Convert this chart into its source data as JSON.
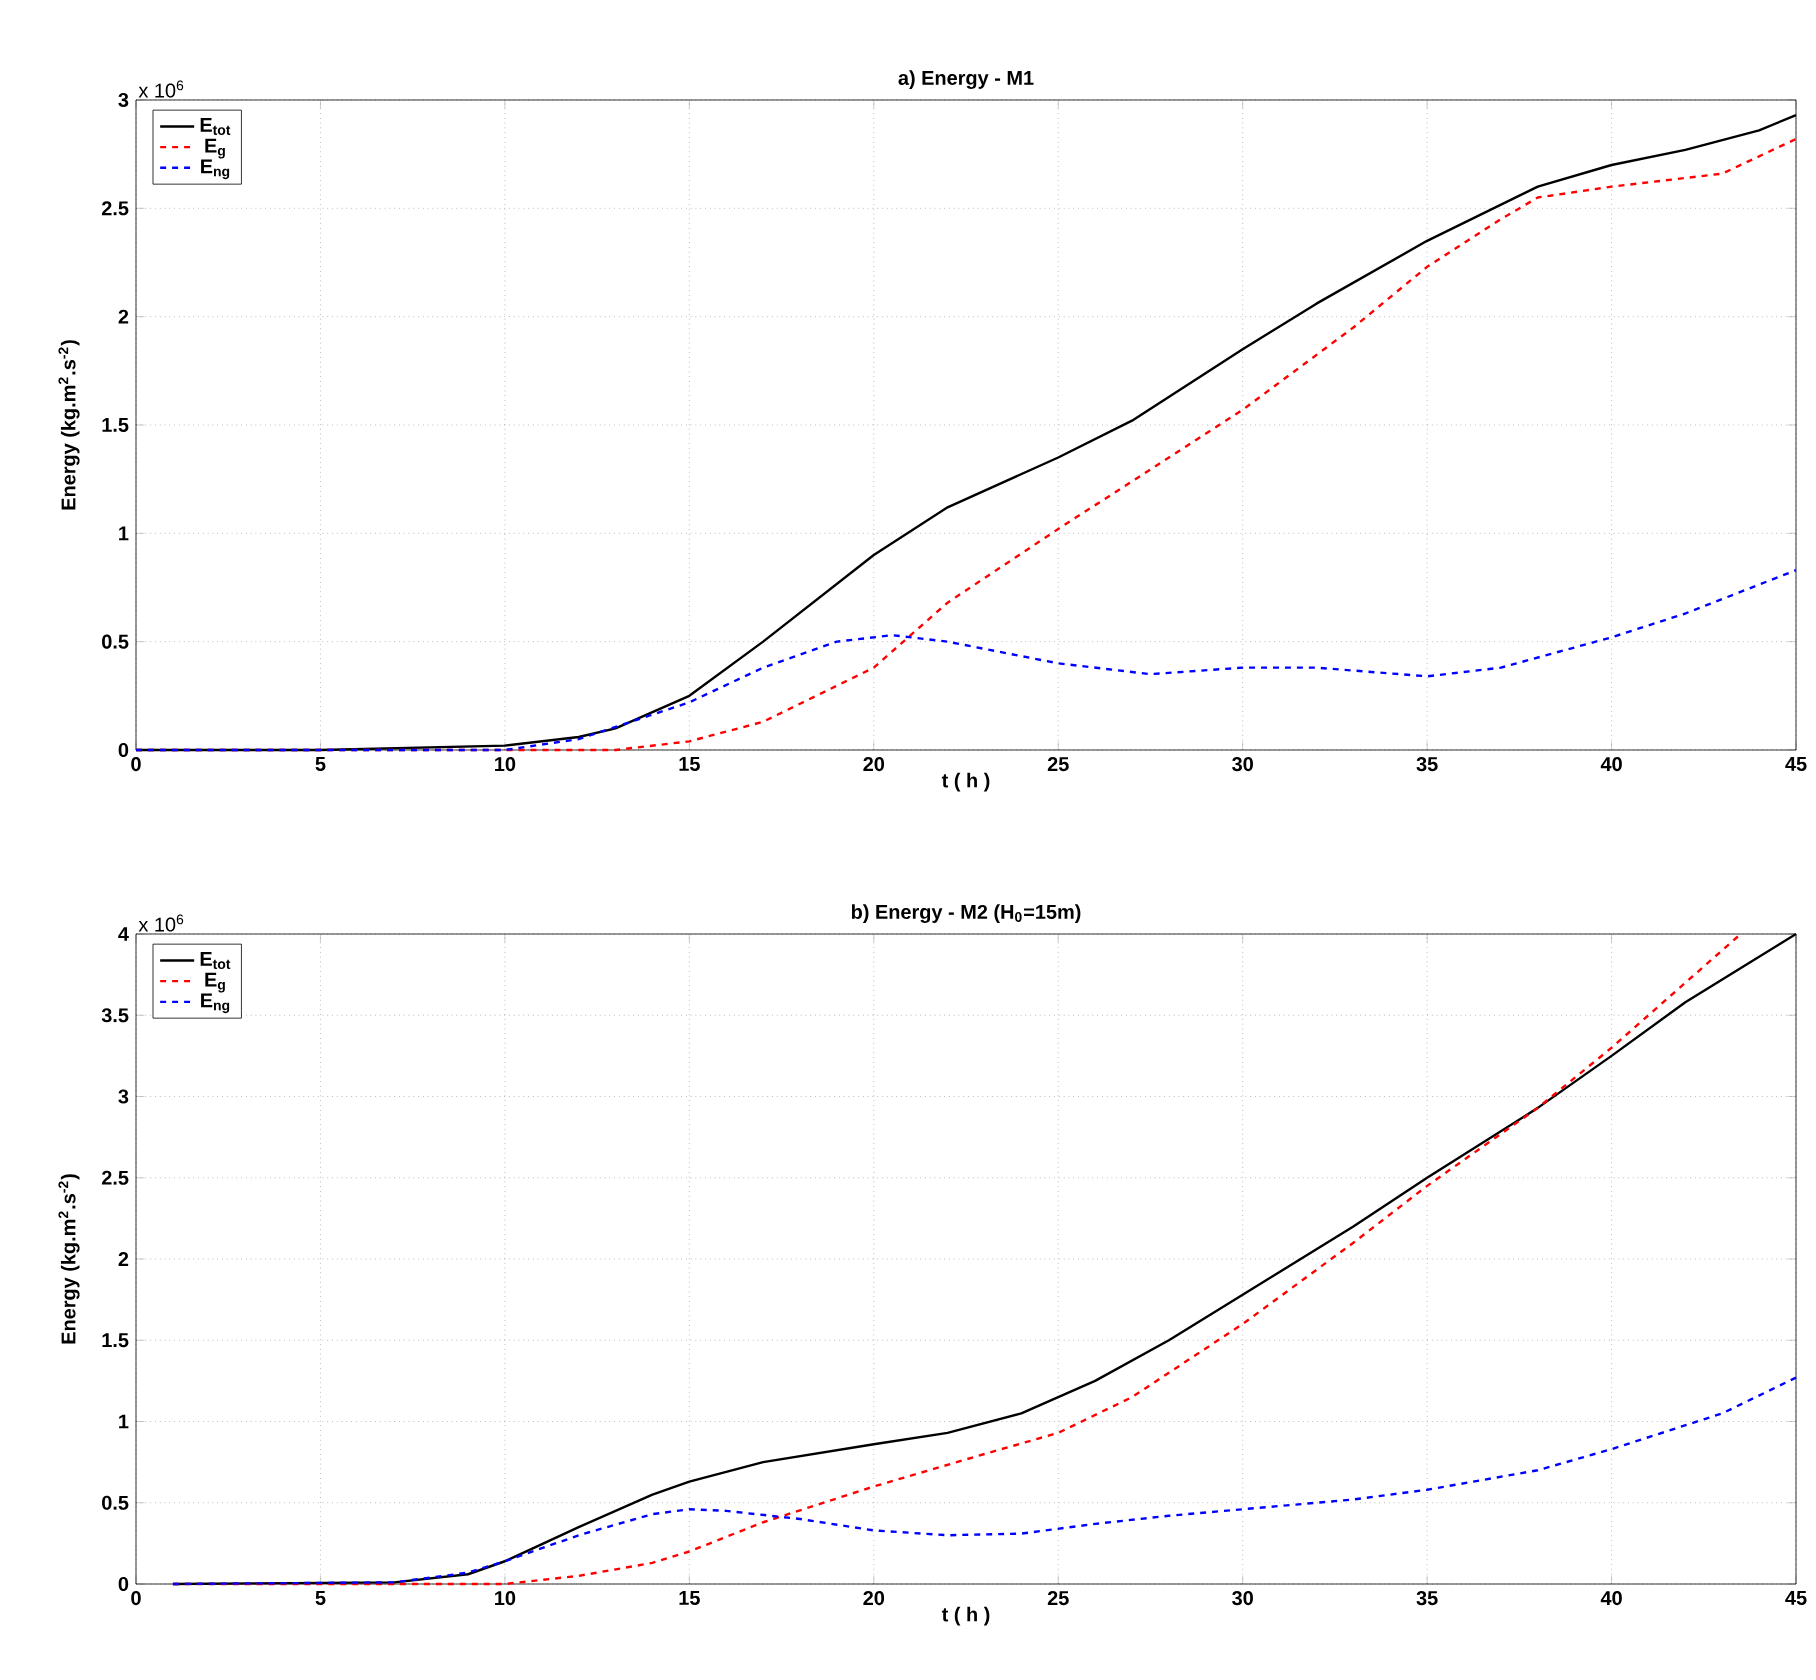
{
  "chart_data": [
    {
      "type": "line",
      "title": "a) Energy - M1",
      "xlabel": "t ( h )",
      "ylabel": "Energy (kg.m$^{2}$.s$^{-2}$)",
      "annotations": [
        "x 10$^{6}$"
      ],
      "xlim": [
        0,
        45
      ],
      "xticks": [
        0,
        5,
        10,
        15,
        20,
        25,
        30,
        35,
        40,
        45
      ],
      "ylim": [
        0,
        3
      ],
      "yticks": [
        0,
        0.5,
        1,
        1.5,
        2,
        2.5,
        3
      ],
      "grid": true,
      "legend": "top left",
      "series": [
        {
          "name": "E$_{tot}$",
          "color": "#000000",
          "line_style": "solid",
          "x": [
            0,
            5,
            10,
            12,
            13,
            15,
            17,
            20,
            22,
            25,
            27,
            30,
            32,
            35,
            38,
            40,
            42,
            44,
            45
          ],
          "values": [
            0,
            0,
            0.02,
            0.06,
            0.1,
            0.25,
            0.5,
            0.9,
            1.12,
            1.35,
            1.52,
            1.85,
            2.06,
            2.35,
            2.6,
            2.7,
            2.77,
            2.86,
            2.93
          ]
        },
        {
          "name": "E$_{g}$",
          "color": "#ff0000",
          "line_style": "dashed",
          "x": [
            0,
            5,
            10,
            13,
            15,
            17,
            20,
            22,
            25,
            28,
            30,
            33,
            35,
            37,
            38,
            40,
            43,
            45
          ],
          "values": [
            0,
            0,
            0,
            0,
            0.04,
            0.13,
            0.38,
            0.68,
            1.02,
            1.35,
            1.57,
            1.95,
            2.23,
            2.45,
            2.55,
            2.6,
            2.66,
            2.82
          ]
        },
        {
          "name": "E$_{ng}$",
          "color": "#0000ff",
          "line_style": "dashed",
          "x": [
            0,
            5,
            10,
            12,
            15,
            17,
            19,
            20.5,
            22,
            25,
            27.5,
            30,
            32,
            35,
            37,
            40,
            42,
            45
          ],
          "values": [
            0,
            0,
            0,
            0.05,
            0.22,
            0.38,
            0.5,
            0.53,
            0.5,
            0.4,
            0.35,
            0.38,
            0.38,
            0.34,
            0.38,
            0.52,
            0.63,
            0.83
          ]
        }
      ]
    },
    {
      "type": "line",
      "title": "b) Energy - M2 (H$_{0}$=15m)",
      "xlabel": "t ( h )",
      "ylabel": "Energy (kg.m$^{2}$.s$^{-2}$)",
      "annotations": [
        "x 10$^{6}$"
      ],
      "xlim": [
        0,
        45
      ],
      "xticks": [
        0,
        5,
        10,
        15,
        20,
        25,
        30,
        35,
        40,
        45
      ],
      "ylim": [
        0,
        4
      ],
      "yticks": [
        0,
        0.5,
        1,
        1.5,
        2,
        2.5,
        3,
        3.5,
        4
      ],
      "grid": true,
      "legend": "top left",
      "series": [
        {
          "name": "E$_{tot}$",
          "color": "#000000",
          "line_style": "solid",
          "x": [
            1,
            7,
            9,
            10,
            12,
            14,
            15,
            17,
            20,
            22,
            24,
            26,
            28,
            30,
            33,
            35,
            38,
            40,
            42,
            45
          ],
          "values": [
            0,
            0.01,
            0.06,
            0.14,
            0.35,
            0.55,
            0.63,
            0.75,
            0.86,
            0.93,
            1.05,
            1.25,
            1.5,
            1.78,
            2.2,
            2.5,
            2.93,
            3.25,
            3.58,
            4.0
          ]
        },
        {
          "name": "E$_{g}$",
          "color": "#ff0000",
          "line_style": "dashed",
          "x": [
            1,
            10,
            12,
            14,
            15,
            17,
            20,
            23,
            25,
            27,
            30,
            33,
            35,
            38,
            40,
            42,
            43.5
          ],
          "values": [
            0,
            0,
            0.05,
            0.13,
            0.2,
            0.38,
            0.6,
            0.8,
            0.93,
            1.15,
            1.6,
            2.1,
            2.45,
            2.93,
            3.3,
            3.7,
            4.0
          ]
        },
        {
          "name": "E$_{ng}$",
          "color": "#0000ff",
          "line_style": "dashed",
          "x": [
            1,
            7,
            9,
            10,
            12,
            14,
            15,
            16,
            18,
            20,
            22,
            24,
            26,
            28,
            30,
            33,
            35,
            38,
            40,
            43,
            45
          ],
          "values": [
            0,
            0.01,
            0.07,
            0.14,
            0.3,
            0.43,
            0.46,
            0.45,
            0.4,
            0.33,
            0.3,
            0.31,
            0.37,
            0.42,
            0.46,
            0.52,
            0.58,
            0.7,
            0.83,
            1.05,
            1.27
          ]
        }
      ]
    }
  ]
}
